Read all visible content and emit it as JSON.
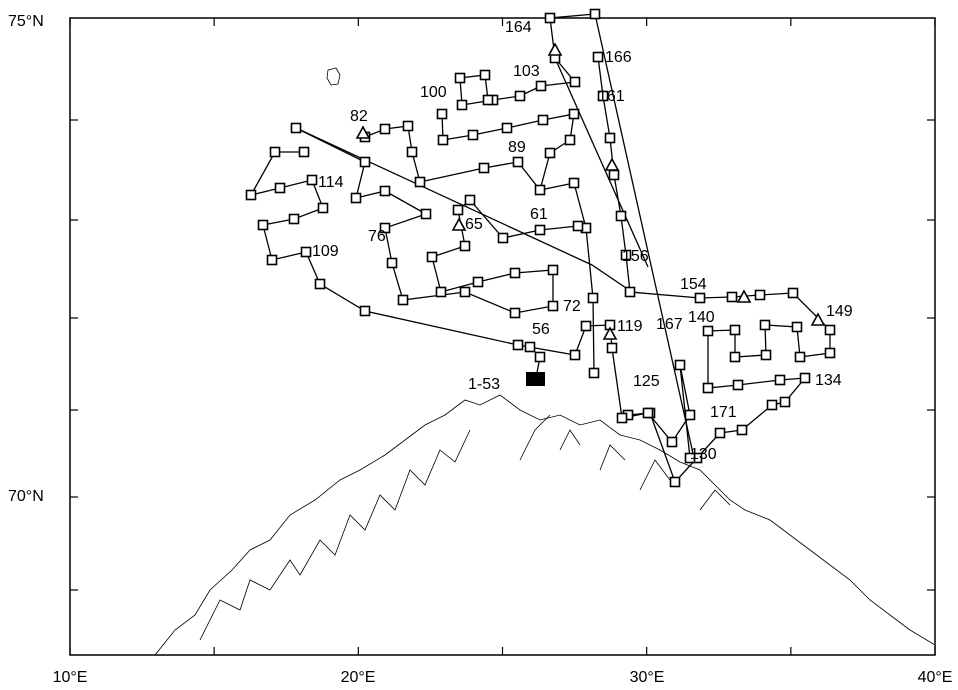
{
  "lat_labels": [
    "75°N",
    "70°N"
  ],
  "lon_labels": [
    "10°E",
    "20°E",
    "30°E",
    "40°E"
  ],
  "station_labels": [
    "164",
    "166",
    "103",
    "100",
    "161",
    "82",
    "89",
    "114",
    "61",
    "65",
    "76",
    "156",
    "109",
    "154",
    "149",
    "72",
    "119",
    "167",
    "140",
    "56",
    "1-53",
    "125",
    "134",
    "171",
    "130"
  ]
}
